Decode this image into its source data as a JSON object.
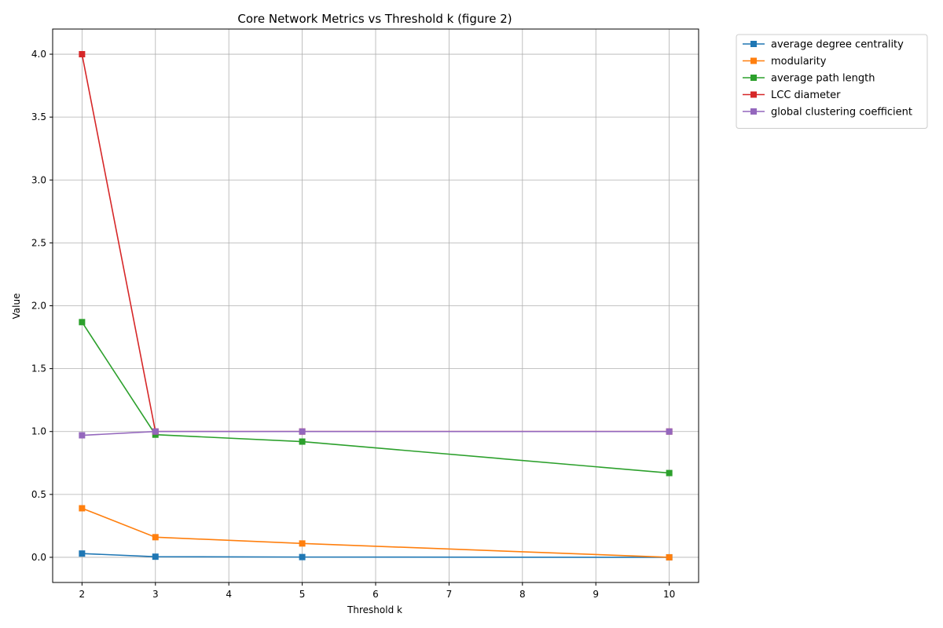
{
  "chart_data": {
    "type": "line",
    "title": "Core Network Metrics vs Threshold k (figure 2)",
    "xlabel": "Threshold k",
    "ylabel": "Value",
    "xlim": [
      1.6,
      10.4
    ],
    "ylim": [
      -0.2,
      4.2
    ],
    "xticks": [
      2,
      3,
      4,
      5,
      6,
      7,
      8,
      9,
      10
    ],
    "yticks": [
      0.0,
      0.5,
      1.0,
      1.5,
      2.0,
      2.5,
      3.0,
      3.5,
      4.0
    ],
    "grid": true,
    "legend_position": "outside-top-right",
    "marker": "square",
    "x": [
      2,
      3,
      5,
      10
    ],
    "series": [
      {
        "name": "average degree centrality",
        "color": "#1f77b4",
        "values": [
          0.03,
          0.005,
          0.002,
          0.0
        ]
      },
      {
        "name": "modularity",
        "color": "#ff7f0e",
        "values": [
          0.39,
          0.16,
          0.11,
          0.0
        ]
      },
      {
        "name": "average path length",
        "color": "#2ca02c",
        "values": [
          1.87,
          0.975,
          0.92,
          0.67
        ]
      },
      {
        "name": "LCC diameter",
        "color": "#d62728",
        "values": [
          4.0,
          1.0,
          1.0,
          1.0
        ]
      },
      {
        "name": "global clustering coefficient",
        "color": "#9467bd",
        "values": [
          0.97,
          1.0,
          1.0,
          1.0
        ]
      }
    ]
  }
}
